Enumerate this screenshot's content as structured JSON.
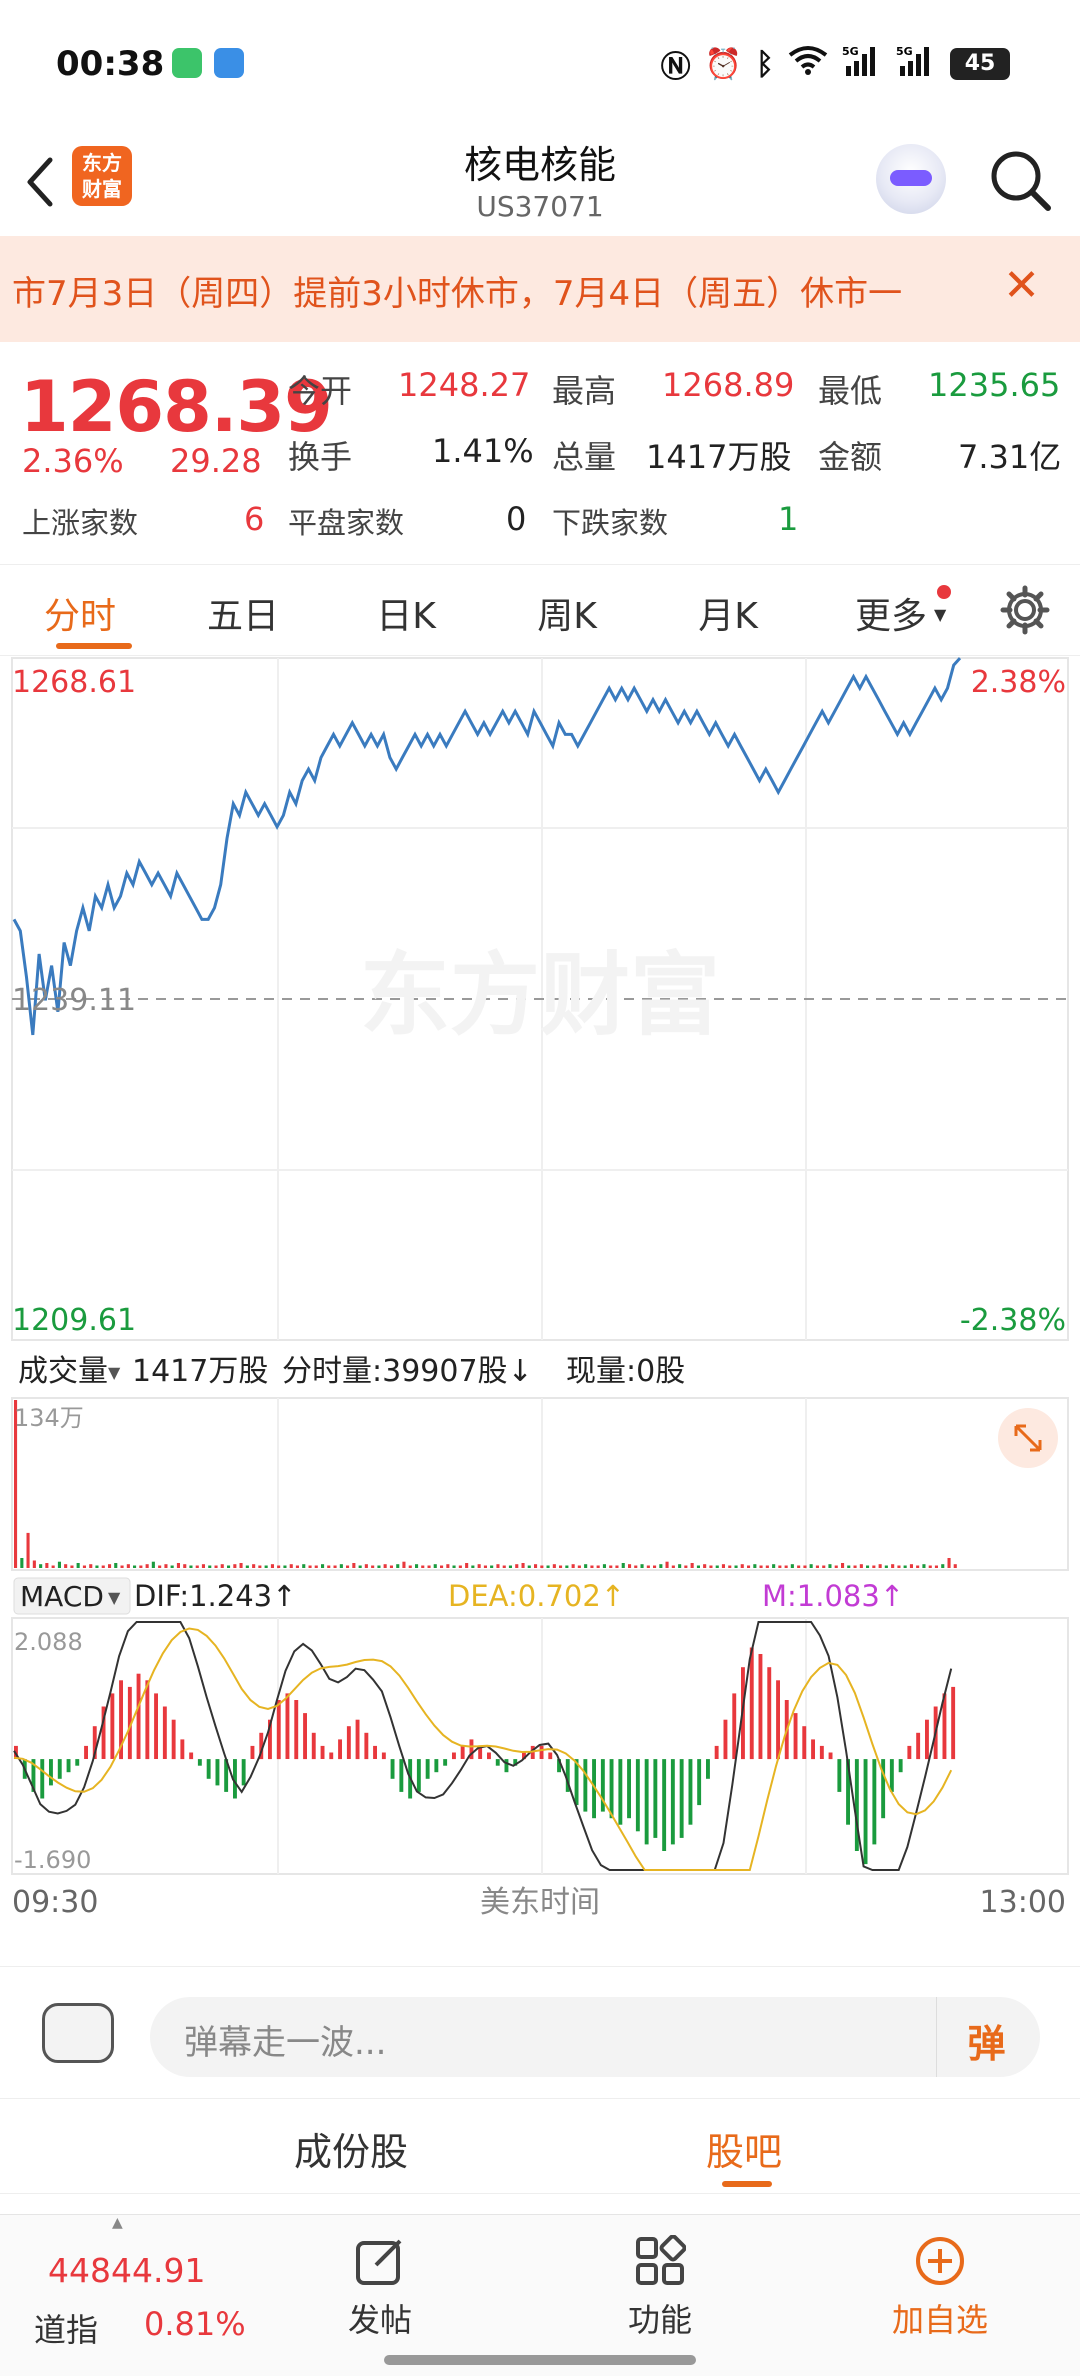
{
  "status_bar": {
    "time": "00:38",
    "battery": "45",
    "icons": [
      "nfc-icon",
      "alarm-icon",
      "bluetooth-icon",
      "wifi-icon",
      "signal-5g-icon",
      "signal-5g-icon"
    ]
  },
  "header": {
    "title": "核电核能",
    "code": "US37071",
    "logo_text_1": "东方",
    "logo_text_2": "财富"
  },
  "banner": {
    "text": "市7月3日（周四）提前3小时休市，7月4日（周五）休市一",
    "close": "✕"
  },
  "quote": {
    "price": "1268.39",
    "change_pct": "2.36%",
    "change": "29.28",
    "open_label": "今开",
    "open": "1248.27",
    "high_label": "最高",
    "high": "1268.89",
    "low_label": "最低",
    "low": "1235.65",
    "turnover_label": "换手",
    "turnover": "1.41%",
    "volume_label": "总量",
    "volume": "1417万股",
    "amount_label": "金额",
    "amount": "7.31亿",
    "up_label": "上涨家数",
    "up": "6",
    "flat_label": "平盘家数",
    "flat": "0",
    "down_label": "下跌家数",
    "down": "1"
  },
  "tabs": [
    "分时",
    "五日",
    "日K",
    "周K",
    "月K",
    "更多"
  ],
  "chart_labels": {
    "price_top": "1268.61",
    "pct_top": "2.38%",
    "price_mid": "1239.11",
    "price_bottom": "1209.61",
    "pct_bottom": "-2.38%",
    "watermark": "东方财富",
    "vol_select": "成交量",
    "vol_total": "1417万股",
    "vol_minute": "分时量:39907股↓",
    "vol_now": "现量:0股",
    "vol_max": "134万",
    "macd_select": "MACD",
    "dif": "DIF:1.243↑",
    "dea": "DEA:0.702↑",
    "m": "M:1.083↑",
    "macd_top": "2.088",
    "macd_bottom": "-1.690",
    "time_start": "09:30",
    "time_mid": "美东时间",
    "time_end": "13:00"
  },
  "colors": {
    "up": "#e8383d",
    "down": "#1a9b3e",
    "line": "#3a7bbf",
    "accent": "#e86a1a",
    "dea": "#e6b422",
    "m": "#c23bd4"
  },
  "input": {
    "placeholder": "弹幕走一波...",
    "danmu_button": "弹"
  },
  "subtabs": {
    "left": "成份股",
    "right": "股吧"
  },
  "bottom_nav": {
    "index_value": "44844.91",
    "index_name": "道指",
    "index_pct": "0.81%",
    "post": "发帖",
    "functions": "功能",
    "add_watch": "加自选"
  },
  "chart_data": [
    {
      "type": "line",
      "title": "",
      "xlabel": "",
      "ylabel": "",
      "x_range": [
        "09:30",
        "13:00"
      ],
      "ylim": [
        1209.61,
        1268.61
      ],
      "reference": 1239.11,
      "series": [
        {
          "values": [
            1246,
            1245,
            1241,
            1236,
            1243,
            1239,
            1242,
            1238,
            1244,
            1242,
            1245,
            1247,
            1245,
            1248,
            1247,
            1249,
            1247,
            1248,
            1250,
            1249,
            1251,
            1250,
            1249,
            1250,
            1249,
            1248,
            1250,
            1249,
            1248,
            1247,
            1246,
            1246,
            1247,
            1249,
            1253,
            1256,
            1255,
            1257,
            1256,
            1255,
            1256,
            1255,
            1254,
            1255,
            1257,
            1256,
            1258,
            1259,
            1258,
            1260,
            1261,
            1262,
            1261,
            1262,
            1263,
            1262,
            1261,
            1262,
            1261,
            1262,
            1260,
            1259,
            1260,
            1261,
            1262,
            1261,
            1262,
            1261,
            1262,
            1261,
            1262,
            1263,
            1264,
            1263,
            1262,
            1263,
            1262,
            1263,
            1264,
            1263,
            1264,
            1263,
            1262,
            1264,
            1263,
            1262,
            1261,
            1263,
            1262,
            1262,
            1261,
            1262,
            1263,
            1264,
            1265,
            1266,
            1265,
            1266,
            1265,
            1266,
            1265,
            1264,
            1265,
            1264,
            1265,
            1264,
            1263,
            1264,
            1263,
            1264,
            1263,
            1262,
            1263,
            1262,
            1261,
            1262,
            1261,
            1260,
            1259,
            1258,
            1259,
            1258,
            1257,
            1258,
            1259,
            1260,
            1261,
            1262,
            1263,
            1264,
            1263,
            1264,
            1265,
            1266,
            1267,
            1266,
            1267,
            1266,
            1265,
            1264,
            1263,
            1262,
            1263,
            1262,
            1263,
            1264,
            1265,
            1266,
            1265,
            1266,
            1268,
            1268.6
          ]
        }
      ]
    },
    {
      "type": "bar",
      "title": "",
      "ylim": [
        0,
        134
      ],
      "series": [
        {
          "name": "成交量",
          "values": [
            134,
            8,
            28,
            6,
            3,
            4,
            2,
            5,
            3,
            2,
            4,
            2,
            3,
            2,
            2,
            3,
            4,
            2,
            3,
            2,
            2,
            3,
            5,
            2,
            3,
            2,
            4,
            3,
            2,
            2,
            3,
            2,
            2,
            3,
            2,
            3,
            4,
            2,
            3,
            2,
            2,
            3,
            2,
            2,
            3,
            2,
            3,
            2,
            2,
            3,
            2,
            2,
            3,
            2,
            4,
            2,
            3,
            2,
            2,
            3,
            2,
            3,
            5,
            2,
            3,
            2,
            2,
            3,
            2,
            3,
            2,
            2,
            4,
            2,
            3,
            2,
            2,
            3,
            2,
            2,
            3,
            4,
            2,
            3,
            2,
            2,
            3,
            2,
            2,
            3,
            2,
            3,
            2,
            2,
            3,
            2,
            2,
            4,
            3,
            2,
            3,
            2,
            2,
            3,
            5,
            2,
            3,
            2,
            4,
            2,
            3,
            2,
            2,
            3,
            2,
            2,
            3,
            2,
            3,
            2,
            2,
            3,
            2,
            2,
            3,
            2,
            2,
            3,
            2,
            2,
            3,
            2,
            4,
            2,
            2,
            3,
            2,
            2,
            3,
            2,
            3,
            2,
            2,
            3,
            2,
            3,
            2,
            2,
            3,
            8,
            3
          ]
        }
      ]
    },
    {
      "type": "bar",
      "title": "",
      "ylim": [
        -1.69,
        2.088
      ],
      "series": [
        {
          "name": "MACD",
          "values": [
            0.2,
            -0.3,
            -0.5,
            -0.6,
            -0.4,
            -0.3,
            -0.2,
            -0.1,
            0.2,
            0.5,
            0.8,
            1.0,
            1.2,
            1.1,
            1.3,
            1.2,
            1.0,
            0.8,
            0.6,
            0.3,
            0.1,
            -0.1,
            -0.3,
            -0.4,
            -0.5,
            -0.6,
            -0.4,
            0.2,
            0.4,
            0.6,
            0.9,
            1.0,
            0.9,
            0.7,
            0.4,
            0.2,
            0.1,
            0.3,
            0.5,
            0.6,
            0.4,
            0.2,
            0.1,
            -0.3,
            -0.5,
            -0.6,
            -0.5,
            -0.3,
            -0.2,
            -0.1,
            0.1,
            0.2,
            0.3,
            0.2,
            0.1,
            -0.1,
            -0.2,
            -0.1,
            0.1,
            0.2,
            0.2,
            0.1,
            -0.2,
            -0.5,
            -0.7,
            -0.8,
            -0.9,
            -0.8,
            -0.9,
            -1.0,
            -0.9,
            -1.1,
            -1.3,
            -1.2,
            -1.4,
            -1.3,
            -1.2,
            -1.0,
            -0.7,
            -0.3,
            0.2,
            0.6,
            1.0,
            1.4,
            1.7,
            1.6,
            1.4,
            1.2,
            0.9,
            0.7,
            0.5,
            0.3,
            0.2,
            0.1,
            -0.5,
            -1.0,
            -1.4,
            -1.6,
            -1.3,
            -0.9,
            -0.5,
            -0.2,
            0.2,
            0.4,
            0.6,
            0.8,
            1.0,
            1.1
          ]
        }
      ]
    }
  ]
}
